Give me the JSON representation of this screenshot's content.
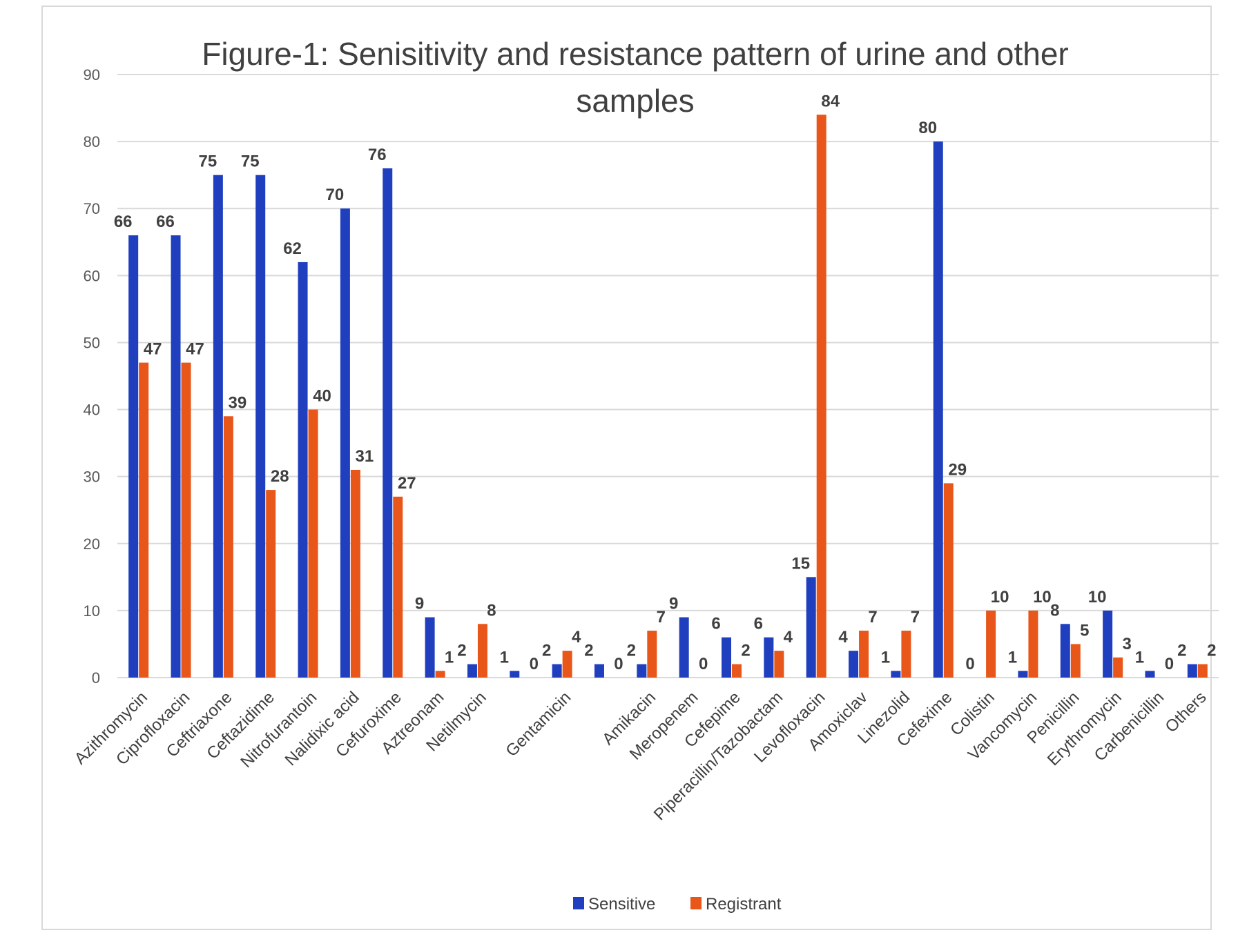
{
  "chart_data": {
    "type": "bar",
    "title": "Figure-1: Senisitivity and resistance pattern of urine and other samples",
    "title_lines": [
      "Figure-1: Senisitivity and resistance pattern of urine and other",
      "samples"
    ],
    "xlabel": "",
    "ylabel": "",
    "ylim": [
      0,
      90
    ],
    "yticks": [
      0,
      10,
      20,
      30,
      40,
      50,
      60,
      70,
      80,
      90
    ],
    "grid": true,
    "legend_position": "bottom",
    "categories": [
      "Azithromycin",
      "Ciprofloxacin",
      "Ceftriaxone",
      "Ceftazidime",
      "Nitrofurantoin",
      "Nalidixic acid",
      "Cefuroxime",
      "Aztreonam",
      "Netilmycin",
      "",
      "Gentamicin",
      "",
      "Amikacin",
      "Meropenem",
      "Cefepime",
      "Piperacillin/Tazobactam",
      "Levofloxacin",
      "Amoxiclav",
      "Linezolid",
      "Cefexime",
      "Colistin",
      "Vancomycin",
      "Penicillin",
      "Erythromycin",
      "Carbenicillin",
      "Others"
    ],
    "series": [
      {
        "name": "Sensitive",
        "color": "#1f3fbf",
        "values": [
          66,
          66,
          75,
          75,
          62,
          70,
          76,
          9,
          2,
          1,
          2,
          2,
          2,
          9,
          6,
          6,
          15,
          4,
          1,
          80,
          0,
          1,
          8,
          10,
          1,
          2
        ]
      },
      {
        "name": "Registrant",
        "color": "#e8561a",
        "values": [
          47,
          47,
          39,
          28,
          40,
          31,
          27,
          1,
          8,
          0,
          4,
          0,
          7,
          0,
          2,
          4,
          84,
          7,
          7,
          29,
          10,
          10,
          5,
          3,
          0,
          2
        ]
      }
    ]
  }
}
